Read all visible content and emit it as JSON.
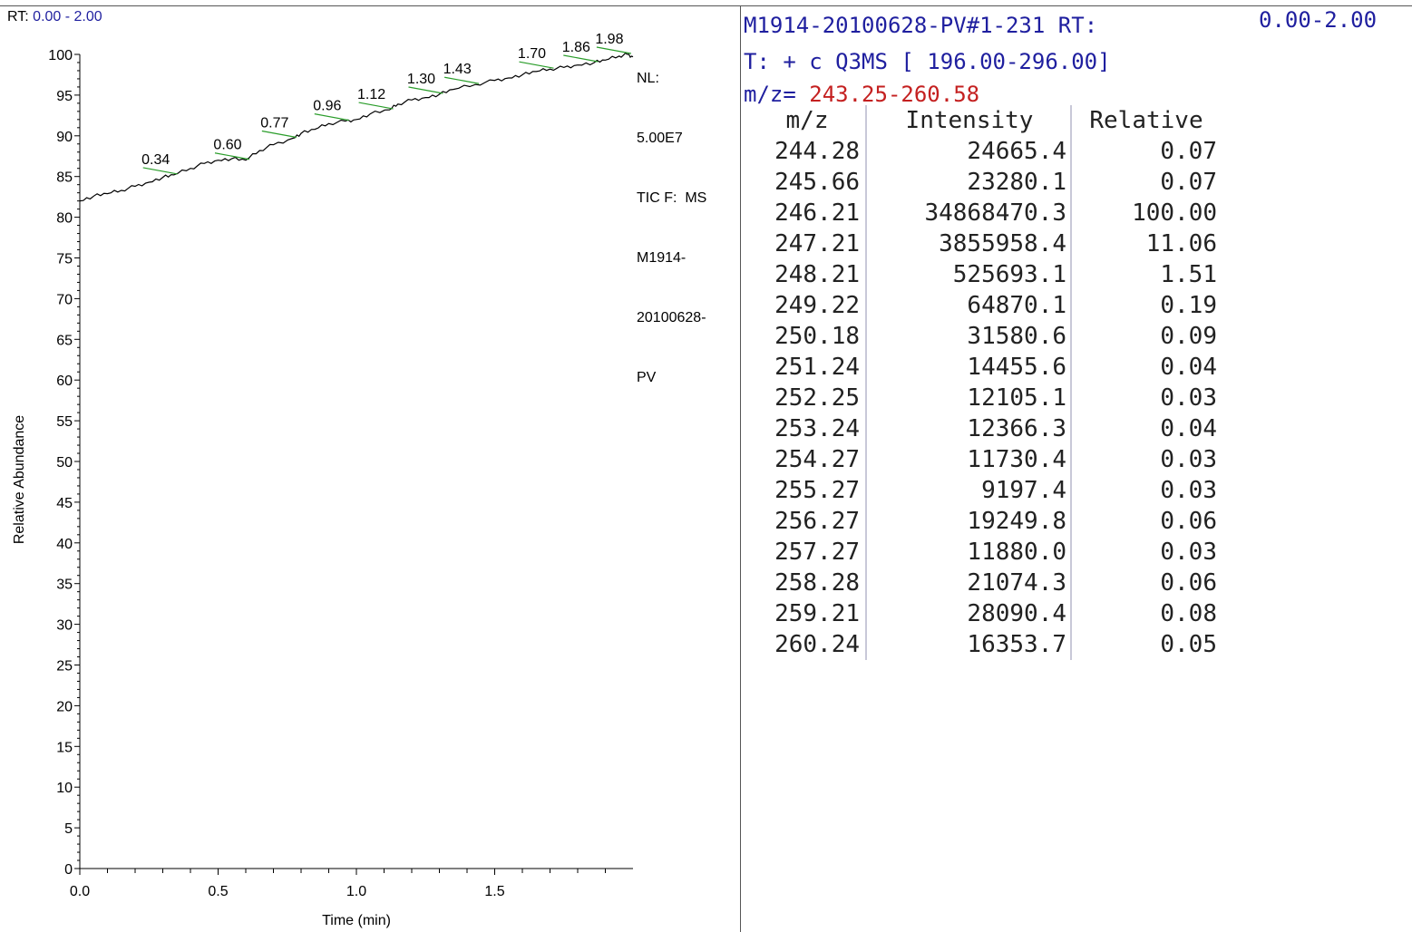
{
  "chromatogram": {
    "rt_prefix": "RT:",
    "rt_range": "0.00 - 2.00",
    "nl_lines": [
      "NL:",
      "5.00E7",
      "TIC F:  MS",
      "M1914-",
      "20100628-",
      "PV"
    ],
    "chart_data": {
      "type": "line",
      "xlabel": "Time (min)",
      "ylabel": "Relative Abundance",
      "xlim": [
        0.0,
        2.0
      ],
      "ylim": [
        0,
        100
      ],
      "x_ticks": [
        0.0,
        0.5,
        1.0,
        1.5
      ],
      "x_tick_labels": [
        "0.0",
        "0.5",
        "1.0",
        "1.5"
      ],
      "y_ticks": [
        0,
        5,
        10,
        15,
        20,
        25,
        30,
        35,
        40,
        45,
        50,
        55,
        60,
        65,
        70,
        75,
        80,
        85,
        90,
        95,
        100
      ],
      "y_tick_labels": [
        "0",
        "5",
        "10",
        "15",
        "20",
        "25",
        "30",
        "35",
        "40",
        "45",
        "50",
        "55",
        "60",
        "65",
        "70",
        "75",
        "80",
        "85",
        "90",
        "95",
        "100"
      ],
      "series": [
        {
          "x": [
            0.0,
            0.05,
            0.1,
            0.15,
            0.2,
            0.25,
            0.3,
            0.34,
            0.4,
            0.45,
            0.5,
            0.55,
            0.6,
            0.65,
            0.7,
            0.77,
            0.8,
            0.85,
            0.9,
            0.96,
            1.0,
            1.05,
            1.12,
            1.15,
            1.2,
            1.25,
            1.3,
            1.35,
            1.43,
            1.5,
            1.55,
            1.6,
            1.65,
            1.7,
            1.75,
            1.8,
            1.86,
            1.9,
            1.95,
            1.98,
            2.0
          ],
          "y": [
            82.0,
            82.6,
            82.9,
            83.3,
            83.8,
            84.3,
            84.9,
            85.2,
            86.0,
            86.6,
            87.0,
            87.2,
            87.0,
            88.2,
            88.9,
            89.7,
            90.3,
            90.8,
            91.5,
            91.8,
            92.0,
            92.7,
            93.2,
            93.9,
            94.4,
            94.7,
            95.1,
            95.7,
            96.3,
            96.8,
            97.1,
            97.5,
            97.9,
            98.2,
            98.4,
            98.7,
            99.0,
            99.3,
            99.8,
            100.0,
            99.7
          ]
        }
      ],
      "peak_labels": [
        {
          "x": 0.34,
          "y": 85.2,
          "label": "0.34"
        },
        {
          "x": 0.6,
          "y": 87.0,
          "label": "0.60"
        },
        {
          "x": 0.77,
          "y": 89.7,
          "label": "0.77"
        },
        {
          "x": 0.96,
          "y": 91.8,
          "label": "0.96"
        },
        {
          "x": 1.12,
          "y": 93.2,
          "label": "1.12"
        },
        {
          "x": 1.3,
          "y": 95.1,
          "label": "1.30"
        },
        {
          "x": 1.43,
          "y": 96.3,
          "label": "1.43"
        },
        {
          "x": 1.7,
          "y": 98.2,
          "label": "1.70"
        },
        {
          "x": 1.86,
          "y": 99.0,
          "label": "1.86"
        },
        {
          "x": 1.98,
          "y": 100.0,
          "label": "1.98"
        }
      ],
      "colors": {
        "trace": "#000000",
        "label_leader": "#2a9d2a",
        "axis": "#000000"
      }
    }
  },
  "spectrum_list": {
    "title": "M1914-20100628-PV#1-231",
    "rt_label": "RT:",
    "rt_value": "0.00-2.00",
    "scan_filter": "T: + c Q3MS [ 196.00-296.00]",
    "mz_prefix": "m/z=",
    "mz_range": "243.25-260.58",
    "headers": {
      "mz": "m/z",
      "intensity": "Intensity",
      "relative": "Relative"
    },
    "rows": [
      {
        "mz": "244.28",
        "intensity": "24665.4",
        "relative": "0.07"
      },
      {
        "mz": "245.66",
        "intensity": "23280.1",
        "relative": "0.07"
      },
      {
        "mz": "246.21",
        "intensity": "34868470.3",
        "relative": "100.00"
      },
      {
        "mz": "247.21",
        "intensity": "3855958.4",
        "relative": "11.06"
      },
      {
        "mz": "248.21",
        "intensity": "525693.1",
        "relative": "1.51"
      },
      {
        "mz": "249.22",
        "intensity": "64870.1",
        "relative": "0.19"
      },
      {
        "mz": "250.18",
        "intensity": "31580.6",
        "relative": "0.09"
      },
      {
        "mz": "251.24",
        "intensity": "14455.6",
        "relative": "0.04"
      },
      {
        "mz": "252.25",
        "intensity": "12105.1",
        "relative": "0.03"
      },
      {
        "mz": "253.24",
        "intensity": "12366.3",
        "relative": "0.04"
      },
      {
        "mz": "254.27",
        "intensity": "11730.4",
        "relative": "0.03"
      },
      {
        "mz": "255.27",
        "intensity": "9197.4",
        "relative": "0.03"
      },
      {
        "mz": "256.27",
        "intensity": "19249.8",
        "relative": "0.06"
      },
      {
        "mz": "257.27",
        "intensity": "11880.0",
        "relative": "0.03"
      },
      {
        "mz": "258.28",
        "intensity": "21074.3",
        "relative": "0.06"
      },
      {
        "mz": "259.21",
        "intensity": "28090.4",
        "relative": "0.08"
      },
      {
        "mz": "260.24",
        "intensity": "16353.7",
        "relative": "0.05"
      }
    ]
  }
}
